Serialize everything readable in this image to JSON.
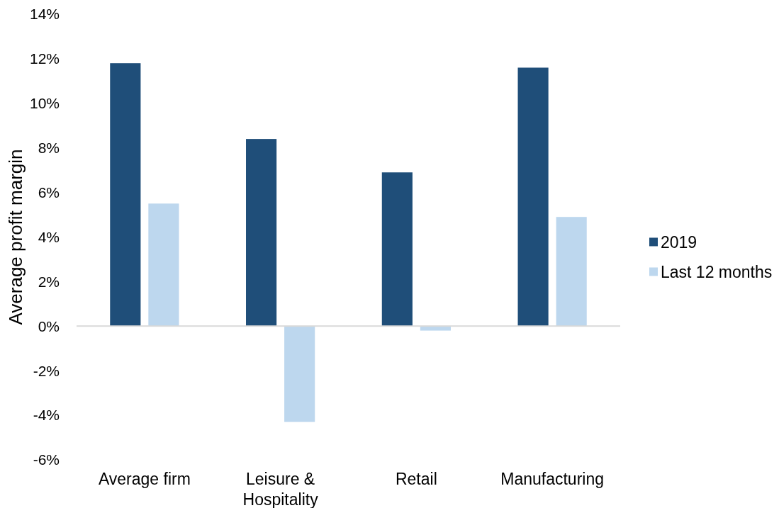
{
  "chart_data": {
    "type": "bar",
    "ylabel": "Average profit margin",
    "categories": [
      "Average firm",
      "Leisure & Hospitality",
      "Retail",
      "Manufacturing"
    ],
    "series": [
      {
        "name": "2019",
        "color": "#1f4e79",
        "values": [
          11.8,
          8.4,
          6.9,
          11.6
        ]
      },
      {
        "name": "Last 12 months",
        "color": "#bdd7ee",
        "values": [
          5.5,
          -4.3,
          -0.2,
          4.9
        ]
      }
    ],
    "ylim": [
      -6,
      14
    ],
    "yticks": [
      {
        "value": -6,
        "label": "-6%"
      },
      {
        "value": -4,
        "label": "-4%"
      },
      {
        "value": -2,
        "label": "-2%"
      },
      {
        "value": 0,
        "label": "0%"
      },
      {
        "value": 2,
        "label": "2%"
      },
      {
        "value": 4,
        "label": "4%"
      },
      {
        "value": 6,
        "label": "6%"
      },
      {
        "value": 8,
        "label": "8%"
      },
      {
        "value": 10,
        "label": "10%"
      },
      {
        "value": 12,
        "label": "12%"
      },
      {
        "value": 14,
        "label": "14%"
      }
    ],
    "legend": "right"
  }
}
